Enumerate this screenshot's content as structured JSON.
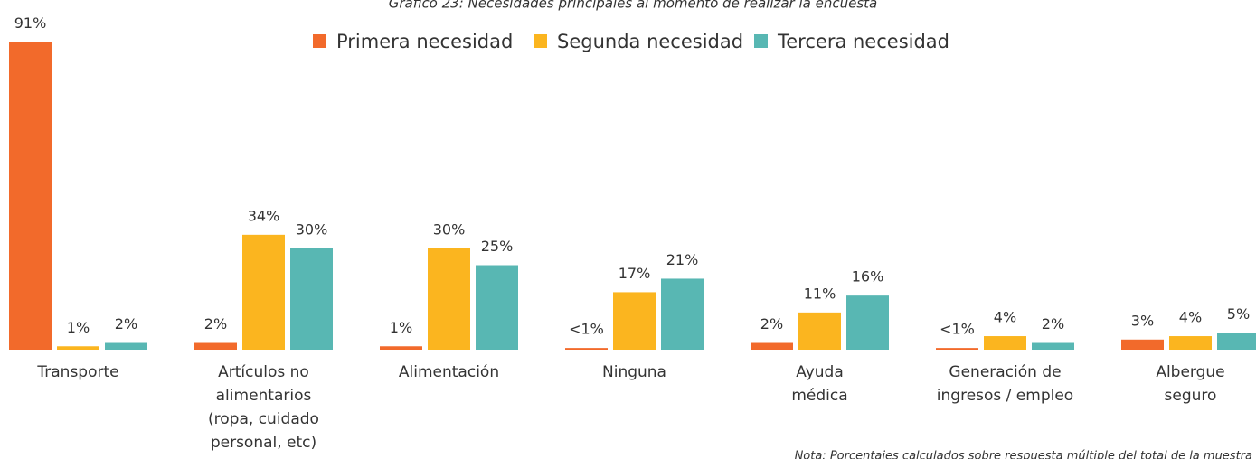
{
  "chart_data": {
    "type": "bar",
    "title": "Gráfico 23: Necesidades principales al momento de realizar la encuesta",
    "note": "Nota: Porcentajes calculados sobre respuesta múltiple del total de la muestra",
    "categories": [
      "Transporte",
      "Artículos no\nalimentarios\n(ropa, cuidado\npersonal, etc)",
      "Alimentación",
      "Ninguna",
      "Ayuda\nmédica",
      "Generación de\ningresos / empleo",
      "Albergue\nseguro"
    ],
    "series": [
      {
        "name": "Primera necesidad",
        "color": "#f26a2b",
        "values": [
          91,
          2,
          1,
          0.5,
          2,
          0.5,
          3
        ],
        "value_labels": [
          "91%",
          "2%",
          "1%",
          "<1%",
          "2%",
          "<1%",
          "3%"
        ]
      },
      {
        "name": "Segunda necesidad",
        "color": "#fbb51f",
        "values": [
          1,
          34,
          30,
          17,
          11,
          4,
          4
        ],
        "value_labels": [
          "1%",
          "34%",
          "30%",
          "17%",
          "11%",
          "4%",
          "4%"
        ]
      },
      {
        "name": "Tercera necesidad",
        "color": "#58b7b3",
        "values": [
          2,
          30,
          25,
          21,
          16,
          2,
          5
        ],
        "value_labels": [
          "2%",
          "30%",
          "25%",
          "21%",
          "16%",
          "2%",
          "5%"
        ]
      }
    ],
    "legend": "top"
  }
}
